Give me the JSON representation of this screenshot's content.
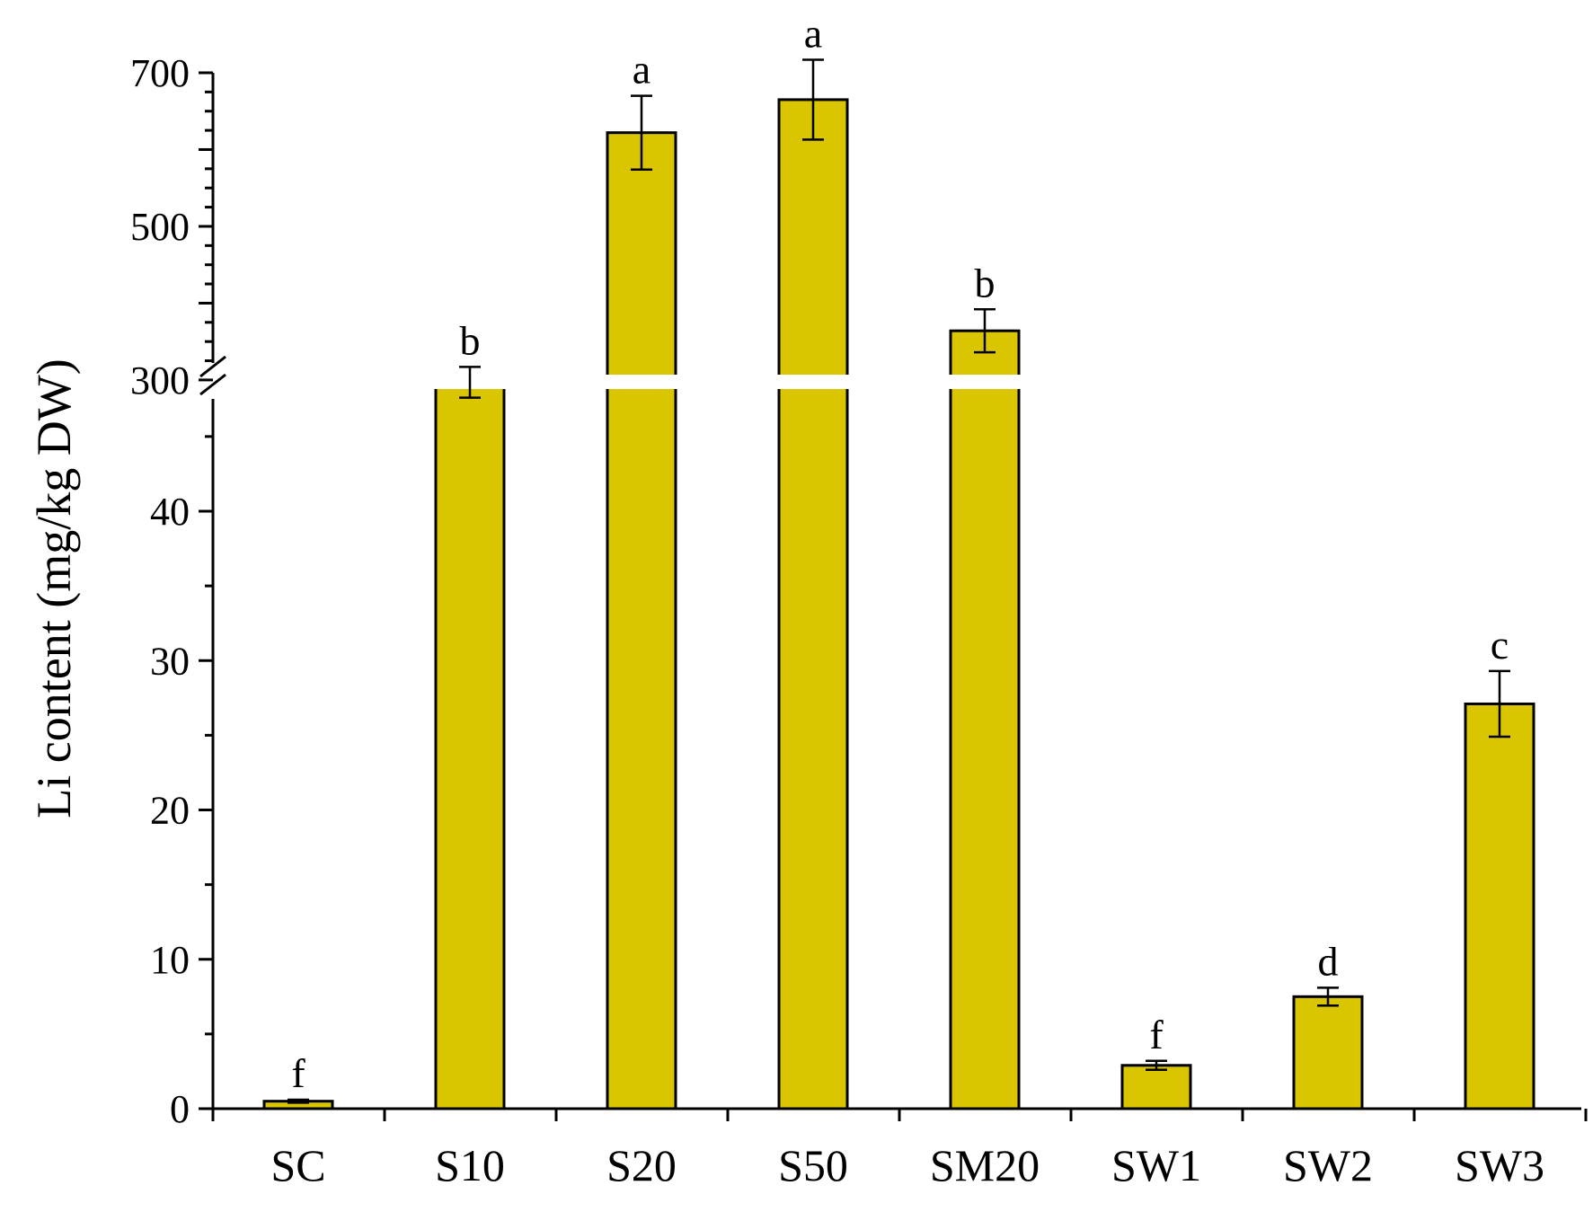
{
  "chart_data": {
    "type": "bar",
    "title": "",
    "xlabel": "",
    "ylabel": "Li content (mg/kg DW)",
    "categories": [
      "SC",
      "S10",
      "S20",
      "S50",
      "SM20",
      "SW1",
      "SW2",
      "SW3"
    ],
    "values": [
      0.5,
      297,
      622,
      665,
      364,
      2.9,
      7.5,
      27.1
    ],
    "errors": [
      0.1,
      20,
      48,
      52,
      28,
      0.3,
      0.6,
      2.2
    ],
    "significance": [
      "f",
      "b",
      "a",
      "a",
      "b",
      "f",
      "d",
      "c"
    ],
    "axis_break": {
      "lower_max": 48,
      "upper_min": 280
    },
    "ylim_lower": [
      0,
      48
    ],
    "ylim_upper": [
      280,
      700
    ],
    "yticks_lower": [
      "0",
      "10",
      "20",
      "30",
      "40"
    ],
    "yticks_upper": [
      "300",
      "500",
      "700"
    ],
    "bar_color": "#d9c500",
    "grid": false
  }
}
